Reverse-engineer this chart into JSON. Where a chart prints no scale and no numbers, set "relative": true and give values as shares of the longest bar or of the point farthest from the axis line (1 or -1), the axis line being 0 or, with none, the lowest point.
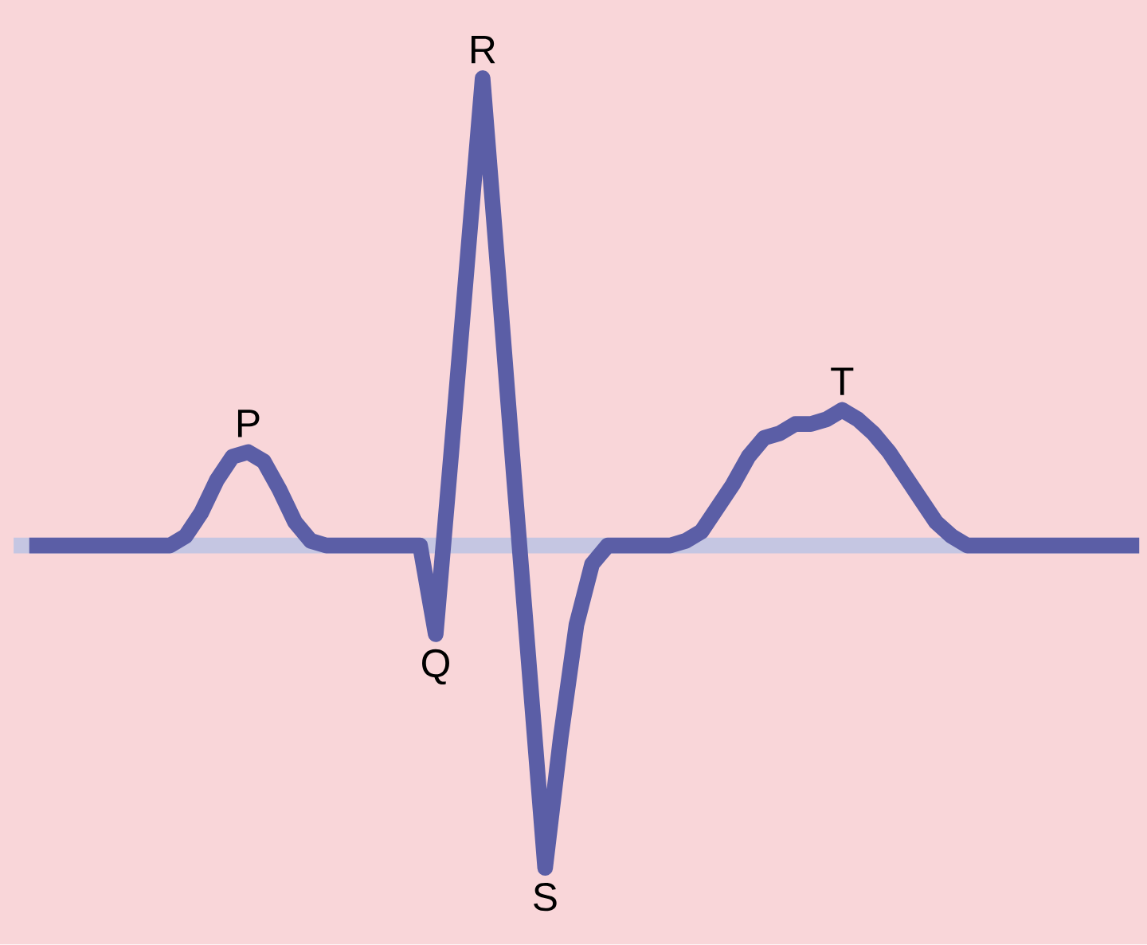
{
  "chart_data": {
    "type": "line",
    "relative": true,
    "categories": [
      null,
      null,
      null,
      null,
      null,
      null,
      null,
      null,
      null,
      null,
      null,
      null,
      null,
      null,
      null,
      null,
      null,
      null,
      null,
      null,
      null,
      null,
      null,
      null,
      null,
      null,
      null,
      null,
      null,
      null,
      null,
      null,
      null,
      null,
      null,
      null,
      null,
      null,
      null,
      null,
      null,
      null,
      null,
      null,
      null,
      null,
      null,
      null,
      null,
      null,
      null,
      null,
      null,
      null,
      null,
      null,
      null,
      null,
      null,
      null,
      null,
      null,
      null,
      null,
      null,
      null,
      null,
      null,
      null,
      null,
      null,
      null
    ],
    "series": [
      {
        "color": "#5b5ea6",
        "values": [
          0,
          0,
          0,
          0,
          0,
          0,
          0,
          0,
          0,
          0,
          0.02,
          0.07,
          0.14,
          0.19,
          0.2,
          0.18,
          0.12,
          0.05,
          0.01,
          0,
          0,
          0,
          0,
          0,
          0,
          0,
          -0.19,
          0.2,
          0.6,
          1,
          0.58,
          0.15,
          -0.27,
          -0.69,
          -0.41,
          -0.17,
          -0.04,
          0,
          0,
          0,
          0,
          0,
          0.01,
          0.03,
          0.08,
          0.13,
          0.19,
          0.23,
          0.24,
          0.26,
          0.26,
          0.27,
          0.29,
          0.27,
          0.24,
          0.2,
          0.15,
          0.1,
          0.05,
          0.02,
          0,
          0,
          0,
          0,
          0,
          0,
          0,
          0,
          0,
          0,
          0,
          0
        ]
      }
    ],
    "annotations": [
      "P",
      "Q",
      "R",
      "S",
      "T"
    ]
  }
}
